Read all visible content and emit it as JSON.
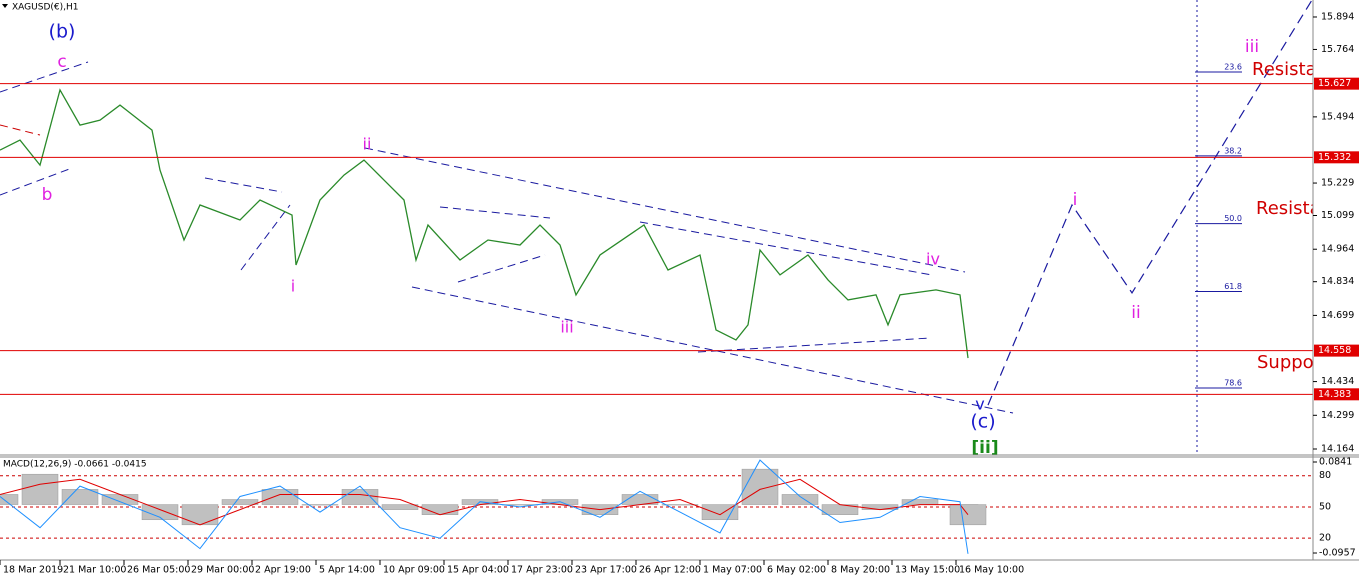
{
  "chart_data": [
    {
      "type": "line",
      "title": "XAGUSD(€),H1",
      "x": [
        0,
        5,
        10,
        15,
        20,
        25,
        30,
        38,
        40,
        46,
        50,
        60,
        65,
        73,
        74,
        80,
        86,
        91,
        96,
        101,
        104,
        107,
        115,
        122,
        130,
        135,
        140,
        144,
        150,
        161,
        167,
        175,
        179,
        184,
        187,
        190,
        195,
        202,
        207,
        212,
        219,
        222,
        225,
        234,
        240,
        242
      ],
      "series": [
        {
          "color": "#2a8a2a",
          "values": [
            15.361,
            15.401,
            15.301,
            15.602,
            15.461,
            15.481,
            15.541,
            15.441,
            15.281,
            15.001,
            15.141,
            15.081,
            15.161,
            15.101,
            14.901,
            15.161,
            15.261,
            15.321,
            15.241,
            15.161,
            14.921,
            15.061,
            14.921,
            15.001,
            14.981,
            15.061,
            14.981,
            14.781,
            14.941,
            15.061,
            14.881,
            14.941,
            14.641,
            14.601,
            14.661,
            14.961,
            14.861,
            14.941,
            14.841,
            14.761,
            14.781,
            14.661,
            14.781,
            14.801,
            14.781,
            14.528
          ]
        }
      ],
      "projection": {
        "x": [
          247,
          268,
          283,
          328
        ],
        "values": [
          14.34,
          15.141,
          14.789,
          15.962
        ],
        "color": "#1a1aa0",
        "dashed": true
      },
      "xlim": [
        0,
        328.25
      ],
      "xticks": [
        {
          "value": 0,
          "label": "18 Mar 2019"
        },
        {
          "value": 15,
          "label": "21 Mar 10:00"
        },
        {
          "value": 31,
          "label": "26 Mar 05:00"
        },
        {
          "value": 47,
          "label": "29 Mar 00:00"
        },
        {
          "value": 63,
          "label": "2 Apr 19:00"
        },
        {
          "value": 79,
          "label": "5 Apr 14:00"
        },
        {
          "value": 95,
          "label": "10 Apr 09:00"
        },
        {
          "value": 111,
          "label": "15 Apr 04:00"
        },
        {
          "value": 127,
          "label": "17 Apr 23:00"
        },
        {
          "value": 143,
          "label": "23 Apr 17:00"
        },
        {
          "value": 159,
          "label": "26 Apr 12:00"
        },
        {
          "value": 175,
          "label": "1 May 07:00"
        },
        {
          "value": 191,
          "label": "6 May 02:00"
        },
        {
          "value": 207,
          "label": "8 May 20:00"
        },
        {
          "value": 223,
          "label": "13 May 15:00"
        },
        {
          "value": 239,
          "label": "16 May 10:00"
        }
      ],
      "ylim": [
        14.14,
        15.962
      ],
      "yticks": [
        15.894,
        15.764,
        15.494,
        15.229,
        15.099,
        14.964,
        14.834,
        14.699,
        14.434,
        14.299,
        14.164
      ],
      "hlines": {
        "values": [
          15.627,
          15.332,
          14.558,
          14.383
        ],
        "color": "#e00000"
      },
      "fibonacci": [
        23.6,
        38.2,
        {
          "value": 50,
          "label": "50.0"
        },
        61.8,
        78.6
      ],
      "annotations": [
        "(b)",
        "c",
        "b",
        "ii",
        "i",
        "iii",
        "iv",
        "v",
        "(c)",
        "[ii]",
        "i",
        "ii",
        "iii",
        "Resista",
        "Resista",
        "Suppo"
      ]
    },
    {
      "type": "macd",
      "title": "MACD(12,26,9) -0.0661 -0.0415",
      "x": [
        0,
        10,
        20,
        30,
        40,
        50,
        60,
        70,
        80,
        90,
        100,
        110,
        120,
        130,
        140,
        150,
        160,
        170,
        180,
        190,
        200,
        210,
        220,
        230,
        240,
        242
      ],
      "series": [
        {
          "color": "#c0c0c0",
          "values": [
            0.02,
            0.06,
            0.03,
            0.02,
            -0.03,
            -0.04,
            0.01,
            0.03,
            0.0,
            0.03,
            -0.01,
            -0.02,
            0.01,
            0.0,
            0.01,
            -0.02,
            0.02,
            0.0,
            -0.03,
            0.07,
            0.02,
            -0.02,
            -0.01,
            0.01,
            0.0,
            -0.04
          ]
        },
        {
          "color": "#e00000",
          "values": [
            0.02,
            0.04,
            0.05,
            0.02,
            -0.01,
            -0.04,
            -0.01,
            0.02,
            0.02,
            0.02,
            0.01,
            -0.02,
            0.0,
            0.01,
            0.0,
            -0.01,
            0.0,
            0.01,
            -0.02,
            0.03,
            0.05,
            0.0,
            -0.01,
            0.0,
            0.0,
            -0.02
          ]
        },
        {
          "color": "#1e90ff",
          "axis": "y2",
          "values": [
            60,
            30,
            70,
            55,
            40,
            10,
            60,
            70,
            45,
            70,
            30,
            20,
            55,
            50,
            55,
            40,
            65,
            45,
            25,
            95,
            60,
            35,
            40,
            60,
            55,
            5
          ]
        }
      ],
      "ylim": [
        -0.1095,
        0.094
      ],
      "yticks": [
        -0.0957,
        0.0841
      ],
      "y2lim": [
        -1,
        98
      ],
      "y2ticks": [
        20,
        50,
        80
      ]
    }
  ]
}
